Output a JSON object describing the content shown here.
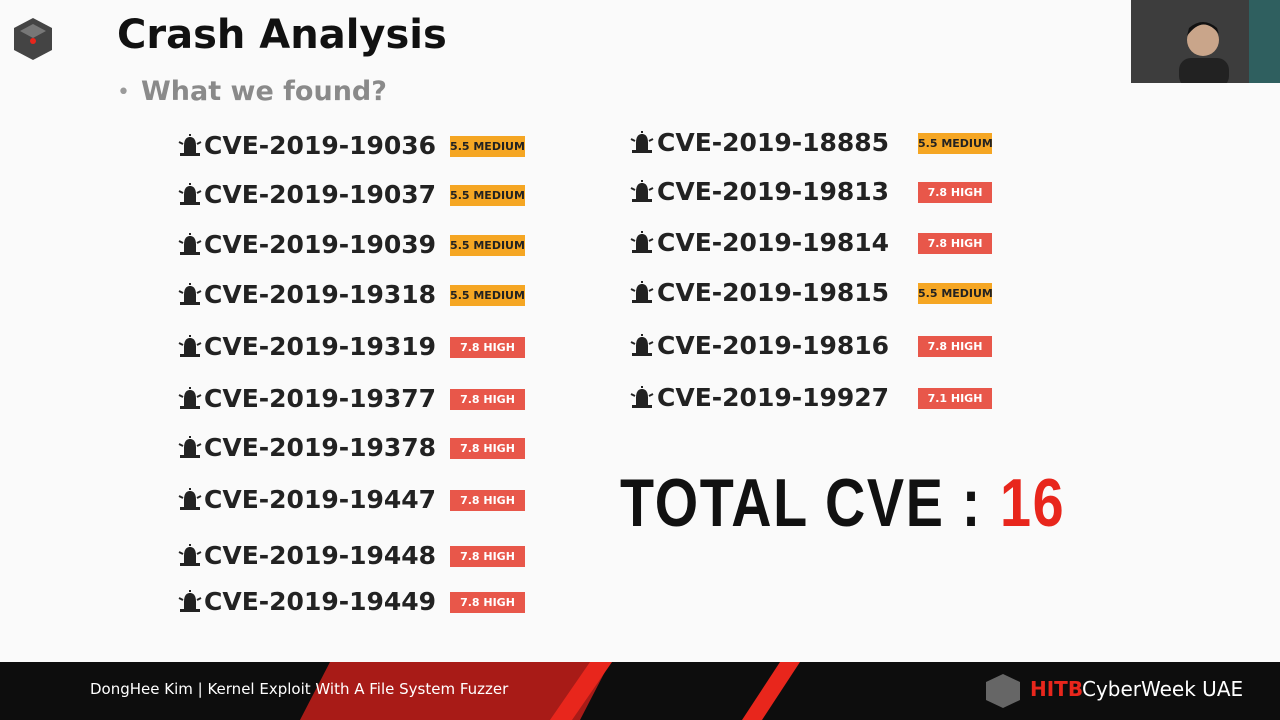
{
  "header": {
    "title": "Crash Analysis",
    "bullet": "What we found?"
  },
  "cves": {
    "left": [
      {
        "id": "CVE-2019-19036",
        "badge": "5.5 MEDIUM",
        "color": "#f5a623"
      },
      {
        "id": "CVE-2019-19037",
        "badge": "5.5 MEDIUM",
        "color": "#f5a623"
      },
      {
        "id": "CVE-2019-19039",
        "badge": "5.5 MEDIUM",
        "color": "#f5a623"
      },
      {
        "id": "CVE-2019-19318",
        "badge": "5.5 MEDIUM",
        "color": "#f5a623"
      },
      {
        "id": "CVE-2019-19319",
        "badge": "7.8 HIGH",
        "color": "#e8574a"
      },
      {
        "id": "CVE-2019-19377",
        "badge": "7.8 HIGH",
        "color": "#e8574a"
      },
      {
        "id": "CVE-2019-19378",
        "badge": "7.8 HIGH",
        "color": "#e8574a"
      },
      {
        "id": "CVE-2019-19447",
        "badge": "7.8 HIGH",
        "color": "#e8574a"
      },
      {
        "id": "CVE-2019-19448",
        "badge": "7.8 HIGH",
        "color": "#e8574a"
      },
      {
        "id": "CVE-2019-19449",
        "badge": "7.8 HIGH",
        "color": "#e8574a"
      }
    ],
    "right": [
      {
        "id": "CVE-2019-18885",
        "badge": "5.5 MEDIUM",
        "color": "#f5a623"
      },
      {
        "id": "CVE-2019-19813",
        "badge": "7.8 HIGH",
        "color": "#e8574a"
      },
      {
        "id": "CVE-2019-19814",
        "badge": "7.8 HIGH",
        "color": "#e8574a"
      },
      {
        "id": "CVE-2019-19815",
        "badge": "5.5 MEDIUM",
        "color": "#f5a623"
      },
      {
        "id": "CVE-2019-19816",
        "badge": "7.8 HIGH",
        "color": "#e8574a"
      },
      {
        "id": "CVE-2019-19927",
        "badge": "7.1 HIGH",
        "color": "#e8574a"
      }
    ]
  },
  "total": {
    "label": "TOTAL CVE :",
    "value": "16"
  },
  "footer": {
    "presenter": "DongHee Kim | Kernel Exploit With A File System Fuzzer",
    "brand": "HITB",
    "event": "CyberWeek UAE"
  }
}
